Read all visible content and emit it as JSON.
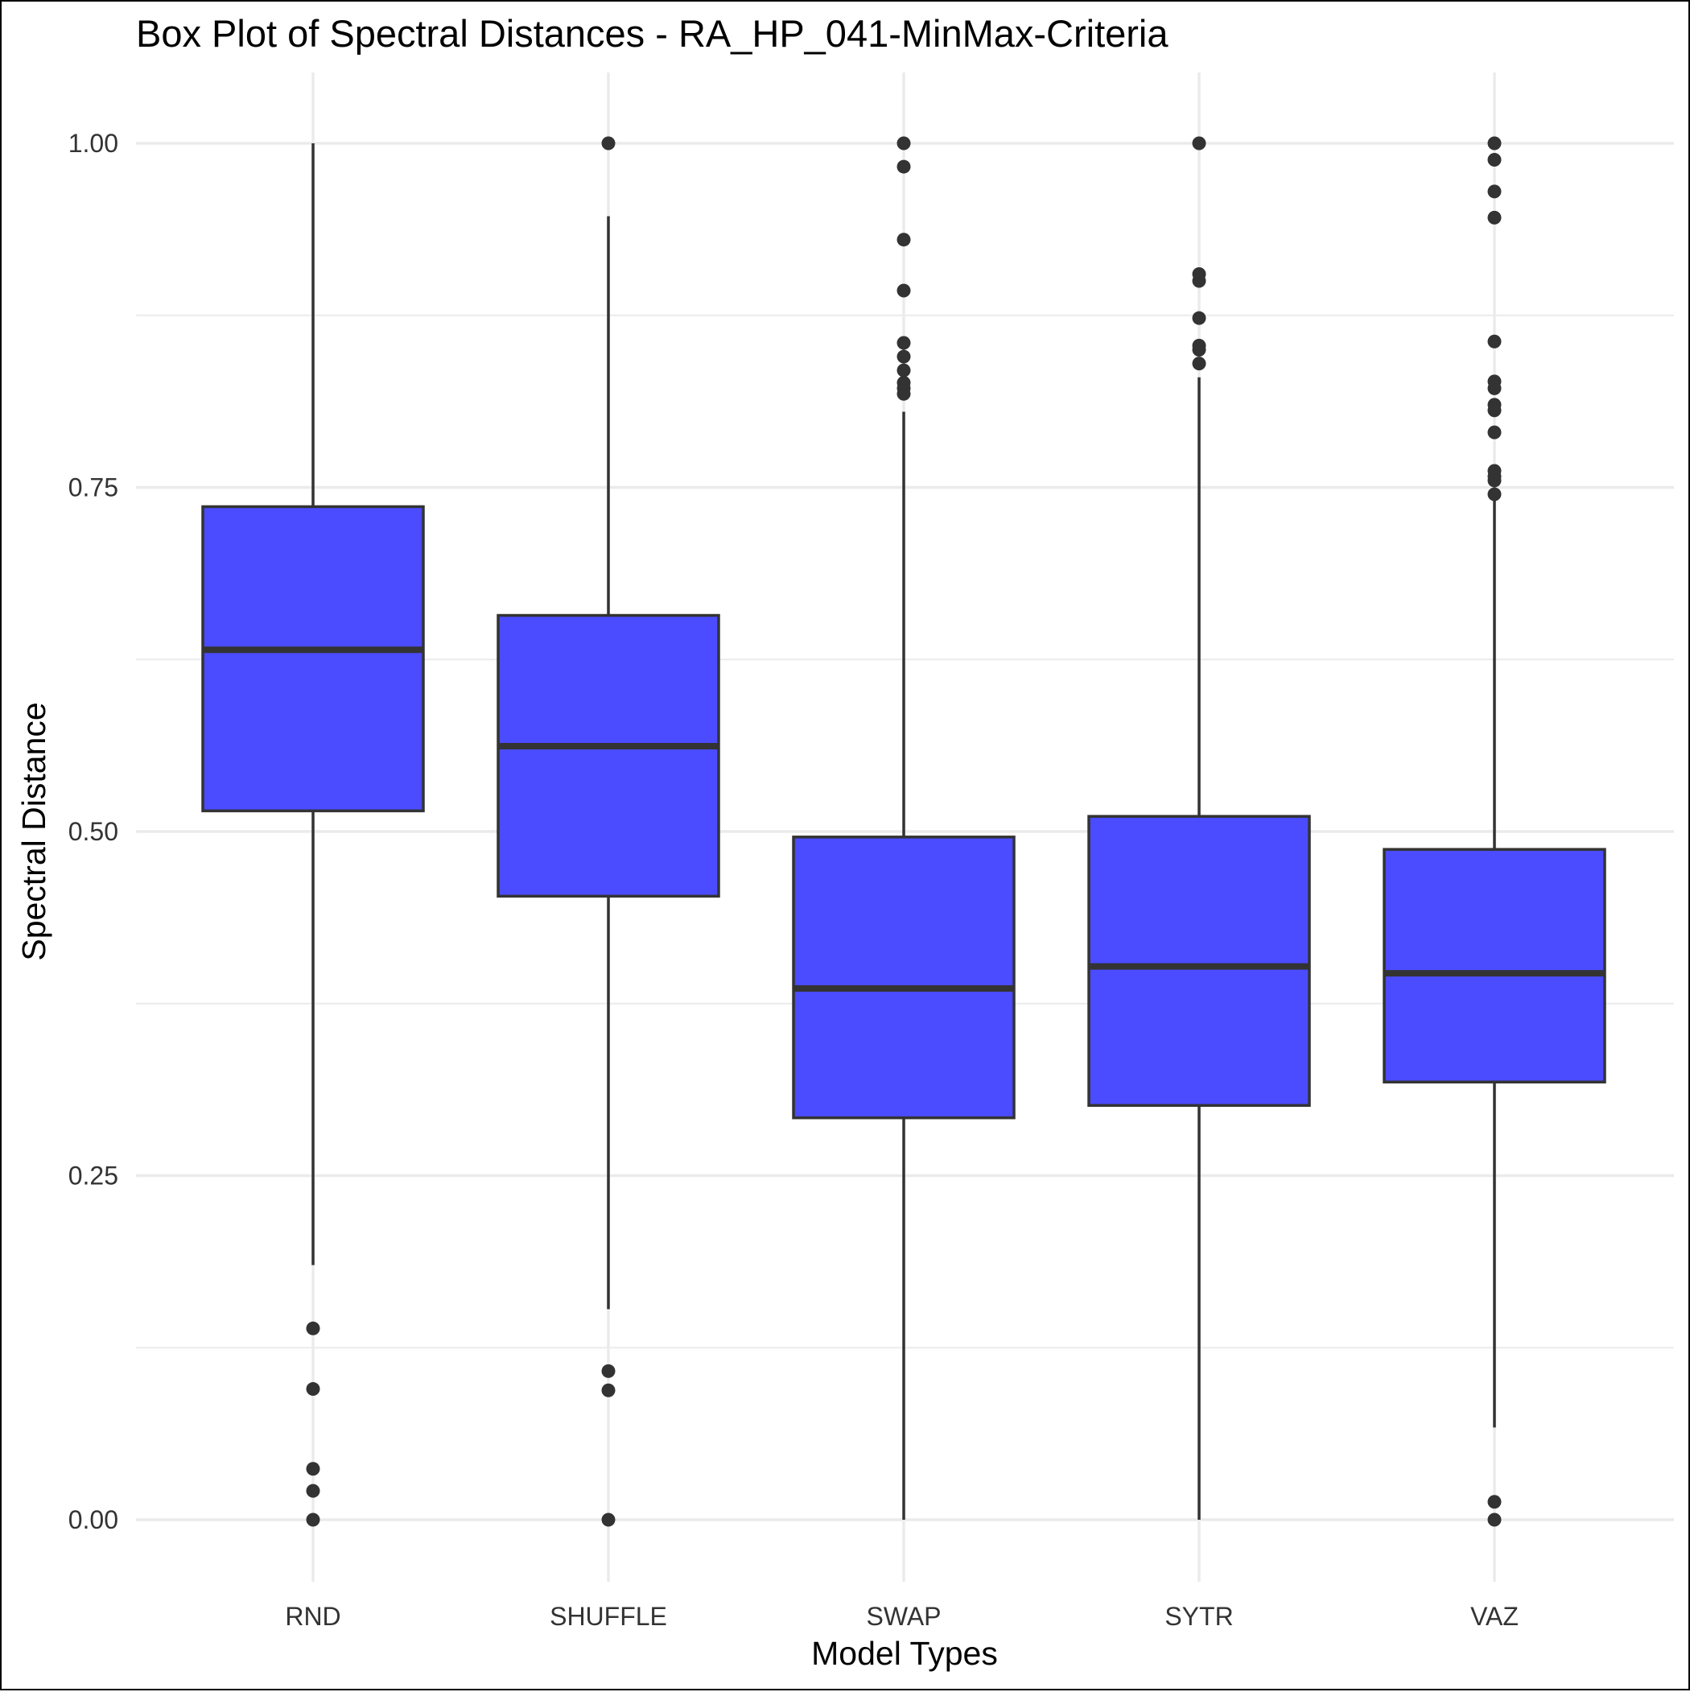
{
  "chart_data": {
    "type": "box",
    "title": "Box Plot of Spectral Distances -  RA_HP_041-MinMax-Criteria",
    "xlabel": "Model Types",
    "ylabel": "Spectral Distance",
    "ylim": [
      -0.04,
      1.04
    ],
    "yticks": [
      0.0,
      0.25,
      0.5,
      0.75,
      1.0
    ],
    "ytick_labels": [
      "0.00",
      "0.25",
      "0.50",
      "0.75",
      "1.00"
    ],
    "grid": true,
    "box_color": "#4B4BFF",
    "line_color": "#333333",
    "categories": [
      "RND",
      "SHUFFLE",
      "SWAP",
      "SYTR",
      "VAZ"
    ],
    "boxes": [
      {
        "category": "RND",
        "whisker_low": 0.185,
        "q1": 0.515,
        "median": 0.632,
        "q3": 0.736,
        "whisker_high": 1.0,
        "outliers": [
          0.0,
          0.021,
          0.037,
          0.095,
          0.139
        ]
      },
      {
        "category": "SHUFFLE",
        "whisker_low": 0.153,
        "q1": 0.453,
        "median": 0.562,
        "q3": 0.657,
        "whisker_high": 0.947,
        "outliers": [
          0.0,
          0.094,
          0.108,
          1.0
        ]
      },
      {
        "category": "SWAP",
        "whisker_low": 0.0,
        "q1": 0.292,
        "median": 0.386,
        "q3": 0.496,
        "whisker_high": 0.805,
        "outliers": [
          0.818,
          0.822,
          0.826,
          0.835,
          0.845,
          0.855,
          0.893,
          0.93,
          0.983,
          1.0
        ]
      },
      {
        "category": "SYTR",
        "whisker_low": 0.0,
        "q1": 0.301,
        "median": 0.402,
        "q3": 0.511,
        "whisker_high": 0.83,
        "outliers": [
          0.84,
          0.85,
          0.853,
          0.873,
          0.9,
          0.905,
          1.0
        ]
      },
      {
        "category": "VAZ",
        "whisker_low": 0.067,
        "q1": 0.318,
        "median": 0.397,
        "q3": 0.487,
        "whisker_high": 0.745,
        "outliers": [
          0.0,
          0.013,
          0.745,
          0.755,
          0.758,
          0.762,
          0.79,
          0.806,
          0.81,
          0.822,
          0.827,
          0.856,
          0.946,
          0.965,
          0.988,
          1.0
        ]
      }
    ]
  }
}
